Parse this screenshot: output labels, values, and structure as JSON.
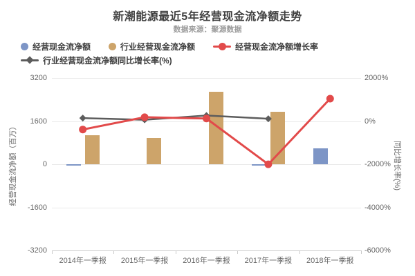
{
  "chart_data": {
    "type": "bar+line",
    "title": "新潮能源最近5年经营现金流净额走势",
    "subtitle": "数据来源：聚源数据",
    "legend_position": "top-left",
    "grid": true,
    "categories": [
      "2014年一季报",
      "2015年一季报",
      "2016年一季报",
      "2017年一季报",
      "2018年一季报"
    ],
    "series": [
      {
        "name": "经营现金流净额",
        "type": "bar",
        "axis": "left",
        "color": "#7d95c6",
        "values": [
          -40,
          0,
          0,
          -50,
          590
        ]
      },
      {
        "name": "行业经营现金流净额",
        "type": "bar",
        "axis": "left",
        "color": "#cda46a",
        "values": [
          1065,
          980,
          2700,
          1950,
          null
        ]
      },
      {
        "name": "经营现金流净额增长率",
        "type": "line",
        "marker": "circle",
        "axis": "right",
        "color": "#e24a4a",
        "values": [
          -390,
          180,
          120,
          -2005,
          1040
        ]
      },
      {
        "name": "行业经营现金流净额同比增长率(%)",
        "type": "line",
        "marker": "diamond",
        "axis": "right",
        "color": "#5c5c5c",
        "values": [
          140,
          60,
          260,
          110,
          null
        ]
      }
    ],
    "left_axis": {
      "title": "经营现金流净额（百万）",
      "ticks": [
        "3200",
        "1600",
        "0",
        "-1600",
        "-3200"
      ],
      "min": -3200,
      "max": 3200
    },
    "right_axis": {
      "title": "同比增长率(%)",
      "ticks": [
        "2000%",
        "0%",
        "-2000%",
        "-4000%",
        "-6000%"
      ],
      "min": -6000,
      "max": 2000
    }
  }
}
